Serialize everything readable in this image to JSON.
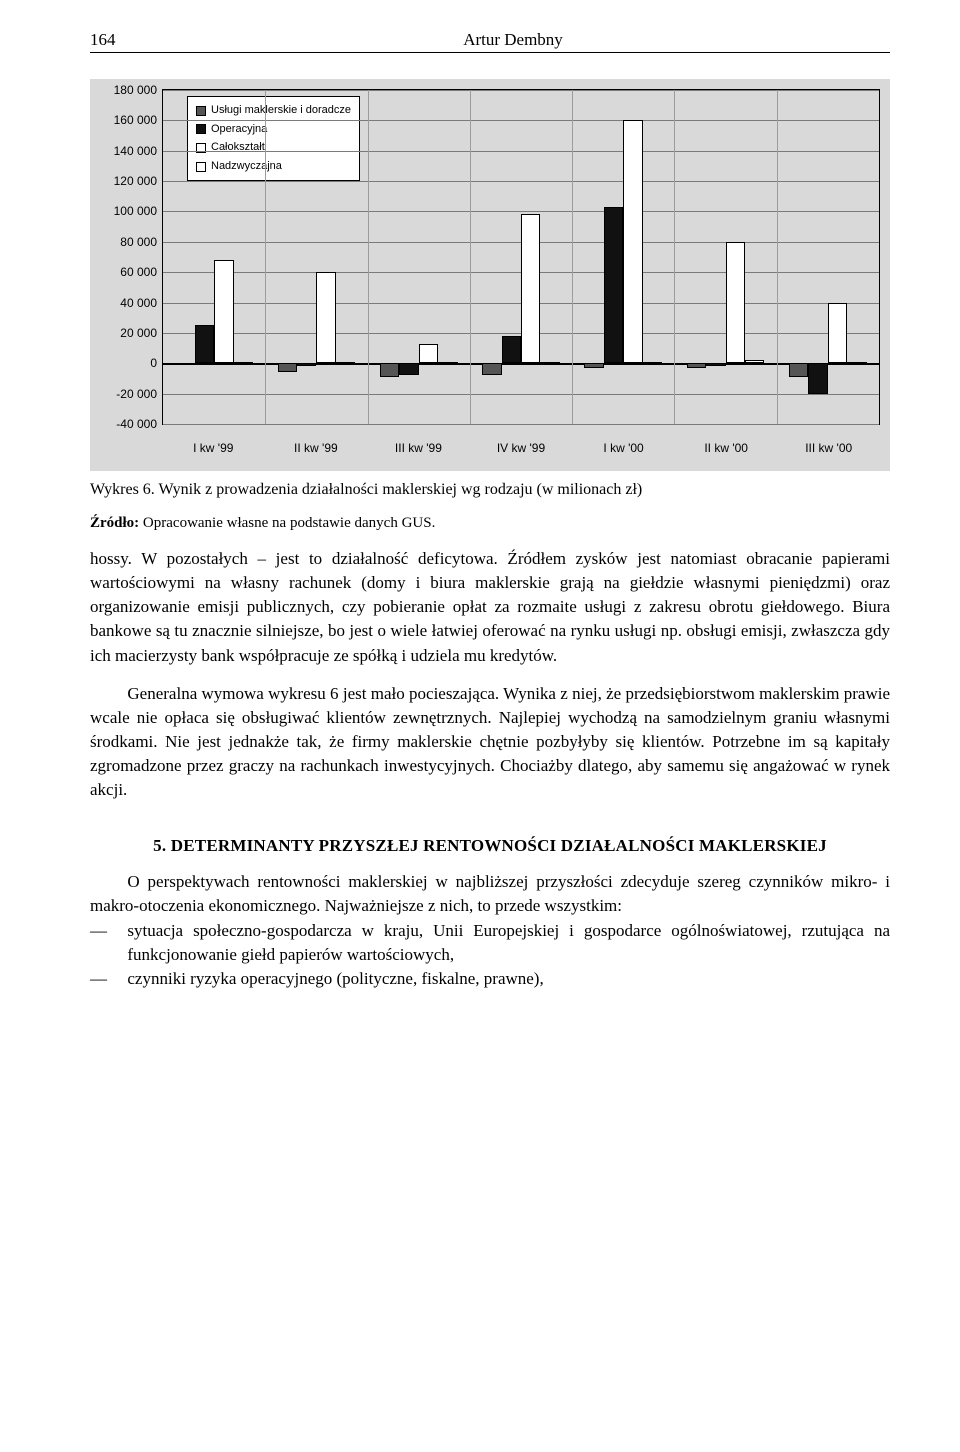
{
  "header": {
    "page_number": "164",
    "author": "Artur Dembny"
  },
  "chart": {
    "type": "grouped-bar",
    "background_color": "#d9d9d9",
    "grid_color": "#7a7a7a",
    "zeroline_color": "#000000",
    "ylim": [
      -40000,
      180000
    ],
    "ytick_step": 20000,
    "yticks": [
      -40000,
      -20000,
      0,
      20000,
      40000,
      60000,
      80000,
      100000,
      120000,
      140000,
      160000,
      180000
    ],
    "ytick_labels": [
      "-40 000",
      "-20 000",
      "0",
      "20 000",
      "40 000",
      "60 000",
      "80 000",
      "100 000",
      "120 000",
      "140 000",
      "160 000",
      "180 000"
    ],
    "categories": [
      "I kw '99",
      "II kw '99",
      "III kw '99",
      "IV kw '99",
      "I kw '00",
      "II kw '00",
      "III kw '00"
    ],
    "series": [
      {
        "key": "uslugi",
        "label": "Usługi maklerskie i doradcze",
        "css": "uslugi",
        "color": "#555555"
      },
      {
        "key": "operacyjna",
        "label": "Operacyjna",
        "css": "oper",
        "color": "#111111"
      },
      {
        "key": "calok",
        "label": "Całokształt",
        "css": "calok",
        "color": "#ffffff"
      },
      {
        "key": "nadz",
        "label": "Nadzwyczajna",
        "css": "nadz",
        "color": "#ffffff"
      }
    ],
    "data": {
      "uslugi": [
        -1000,
        -6000,
        -9000,
        -8000,
        -3000,
        -3000,
        -9000
      ],
      "operacyjna": [
        25000,
        -2000,
        -8000,
        18000,
        103000,
        -2000,
        -20000
      ],
      "calok": [
        68000,
        60000,
        13000,
        98000,
        160000,
        80000,
        40000
      ],
      "nadz": [
        1000,
        1000,
        1000,
        1000,
        1000,
        2000,
        1000
      ]
    },
    "bar_group_width_pct": 76,
    "font_family": "Arial",
    "label_fontsize": 12
  },
  "caption": "Wykres 6. Wynik z prowadzenia działalności maklerskiej wg rodzaju (w milionach zł)",
  "source_label": "Źródło:",
  "source_text": "Opracowanie własne na podstawie danych GUS.",
  "para1": "hossy. W pozostałych – jest to działalność deficytowa. Źródłem zysków jest natomiast obracanie papierami wartościowymi na własny rachunek (domy i biura maklerskie grają na giełdzie własnymi pieniędzmi) oraz organizowanie emisji publicznych, czy pobieranie opłat za rozmaite usługi z zakresu obrotu giełdowego. Biura bankowe są tu znacznie silniejsze, bo jest o wiele łatwiej oferować na rynku usługi np. obsługi emisji, zwłaszcza gdy ich macierzysty bank współpracuje ze spółką i udziela mu kredytów.",
  "para2": "Generalna wymowa wykresu 6 jest mało pocieszająca. Wynika z niej, że przedsiębiorstwom maklerskim prawie wcale nie opłaca się obsługiwać klientów zewnętrznych. Najlepiej wychodzą na samodzielnym graniu własnymi środkami. Nie jest jednakże tak, że firmy maklerskie chętnie pozbyłyby się klientów. Potrzebne im są kapitały zgromadzone przez graczy na rachunkach inwestycyjnych. Chociażby dlatego, aby samemu się angażować w rynek akcji.",
  "section_title": "5. DETERMINANTY PRZYSZŁEJ RENTOWNOŚCI DZIAŁALNOŚCI MAKLERSKIEJ",
  "para3": "O perspektywach rentowności maklerskiej w najbliższej przyszłości zdecyduje szereg czynników mikro- i makro-otoczenia ekonomicznego. Najważniejsze z nich, to przede wszystkim:",
  "bullets": [
    "sytuacja społeczno-gospodarcza w kraju, Unii Europejskiej i gospodarce ogólnoświatowej, rzutująca na funkcjonowanie giełd papierów wartościowych,",
    "czynniki ryzyka operacyjnego (polityczne, fiskalne, prawne),"
  ]
}
